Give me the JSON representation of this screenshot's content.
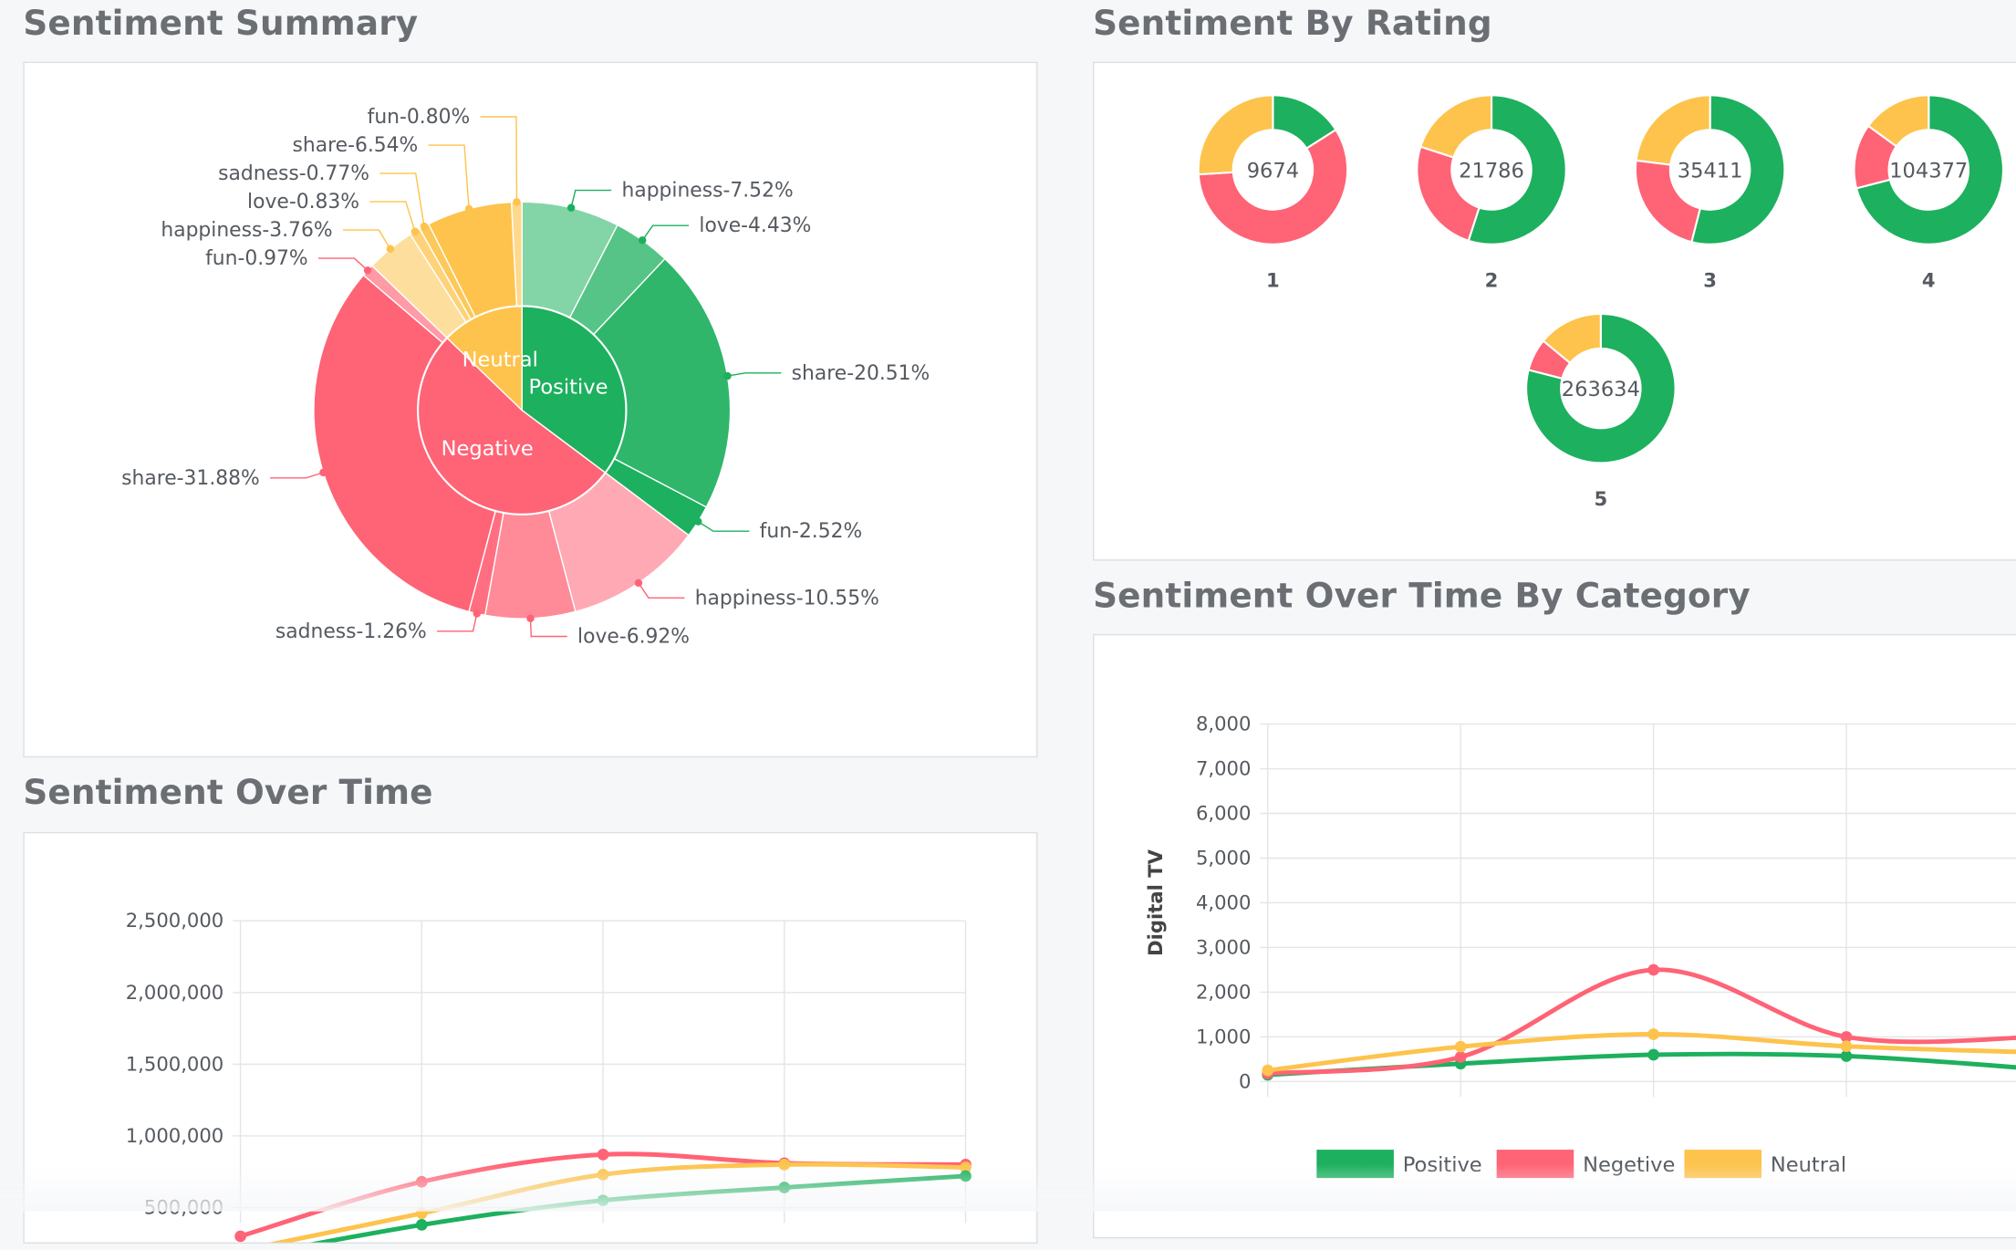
{
  "colors": {
    "positive": "#1db05e",
    "negative": "#ff6376",
    "neutral": "#fdc34c",
    "title": "#6b6f74"
  },
  "sections": {
    "summary_title": "Sentiment Summary",
    "rating_title": "Sentiment By Rating",
    "over_time_title": "Sentiment Over Time",
    "category_title": "Sentiment Over Time By Category"
  },
  "chart_data": [
    {
      "type": "pie",
      "title": "Sentiment Summary",
      "inner_ring": [
        {
          "label": "Positive",
          "color": "#1db05e"
        },
        {
          "label": "Negative",
          "color": "#ff6376"
        },
        {
          "label": "Neutral",
          "color": "#fdc34c"
        }
      ],
      "outer_ring": [
        {
          "label": "happiness-7.52%",
          "group": "Positive",
          "value": 7.52
        },
        {
          "label": "love-4.43%",
          "group": "Positive",
          "value": 4.43
        },
        {
          "label": "share-20.51%",
          "group": "Positive",
          "value": 20.51
        },
        {
          "label": "fun-2.52%",
          "group": "Positive",
          "value": 2.52
        },
        {
          "label": "happiness-10.55%",
          "group": "Negative",
          "value": 10.55
        },
        {
          "label": "love-6.92%",
          "group": "Negative",
          "value": 6.92
        },
        {
          "label": "sadness-1.26%",
          "group": "Negative",
          "value": 1.26
        },
        {
          "label": "share-31.88%",
          "group": "Negative",
          "value": 31.88
        },
        {
          "label": "fun-0.97%",
          "group": "Negative",
          "value": 0.97
        },
        {
          "label": "happiness-3.76%",
          "group": "Neutral",
          "value": 3.76
        },
        {
          "label": "love-0.83%",
          "group": "Neutral",
          "value": 0.83
        },
        {
          "label": "sadness-0.77%",
          "group": "Neutral",
          "value": 0.77
        },
        {
          "label": "share-6.54%",
          "group": "Neutral",
          "value": 6.54
        },
        {
          "label": "fun-0.80%",
          "group": "Neutral",
          "value": 0.8
        }
      ]
    },
    {
      "type": "pie",
      "title": "Sentiment By Rating",
      "donuts": [
        {
          "rating": "1",
          "total": "9674",
          "positive": 0.16,
          "negative": 0.58,
          "neutral": 0.26
        },
        {
          "rating": "2",
          "total": "21786",
          "positive": 0.55,
          "negative": 0.25,
          "neutral": 0.2
        },
        {
          "rating": "3",
          "total": "35411",
          "positive": 0.54,
          "negative": 0.23,
          "neutral": 0.23
        },
        {
          "rating": "4",
          "total": "104377",
          "positive": 0.71,
          "negative": 0.14,
          "neutral": 0.15
        },
        {
          "rating": "5",
          "total": "263634",
          "positive": 0.79,
          "negative": 0.07,
          "neutral": 0.14
        }
      ]
    },
    {
      "type": "line",
      "title": "Sentiment Over Time",
      "x": [
        0,
        1,
        2,
        3,
        4
      ],
      "ylim": [
        500000,
        2500000
      ],
      "yticks": [
        "2,500,000",
        "2,000,000",
        "1,500,000",
        "1,000,000",
        "500,000"
      ],
      "series": [
        {
          "key": "negative",
          "values": [
            300000,
            680000,
            870000,
            810000,
            800000
          ]
        },
        {
          "key": "neutral",
          "values": [
            200000,
            460000,
            730000,
            800000,
            780000
          ]
        },
        {
          "key": "positive",
          "values": [
            150000,
            380000,
            550000,
            640000,
            720000
          ]
        }
      ]
    },
    {
      "type": "line",
      "title": "Sentiment Over Time By Category",
      "ylabel": "Digital TV",
      "x": [
        0,
        1,
        2,
        3,
        4
      ],
      "ylim": [
        0,
        8000
      ],
      "yticks": [
        "8,000",
        "7,000",
        "6,000",
        "5,000",
        "4,000",
        "3,000",
        "2,000",
        "1,000",
        "0"
      ],
      "legend": [
        {
          "name": "Positive",
          "key": "positive"
        },
        {
          "name": "Negetive",
          "key": "negative"
        },
        {
          "name": "Neutral",
          "key": "neutral"
        }
      ],
      "series": [
        {
          "key": "positive",
          "values": [
            150,
            400,
            600,
            570,
            280
          ]
        },
        {
          "key": "negative",
          "values": [
            180,
            550,
            2500,
            1000,
            1000
          ]
        },
        {
          "key": "neutral",
          "values": [
            250,
            780,
            1060,
            790,
            650
          ]
        }
      ]
    }
  ]
}
